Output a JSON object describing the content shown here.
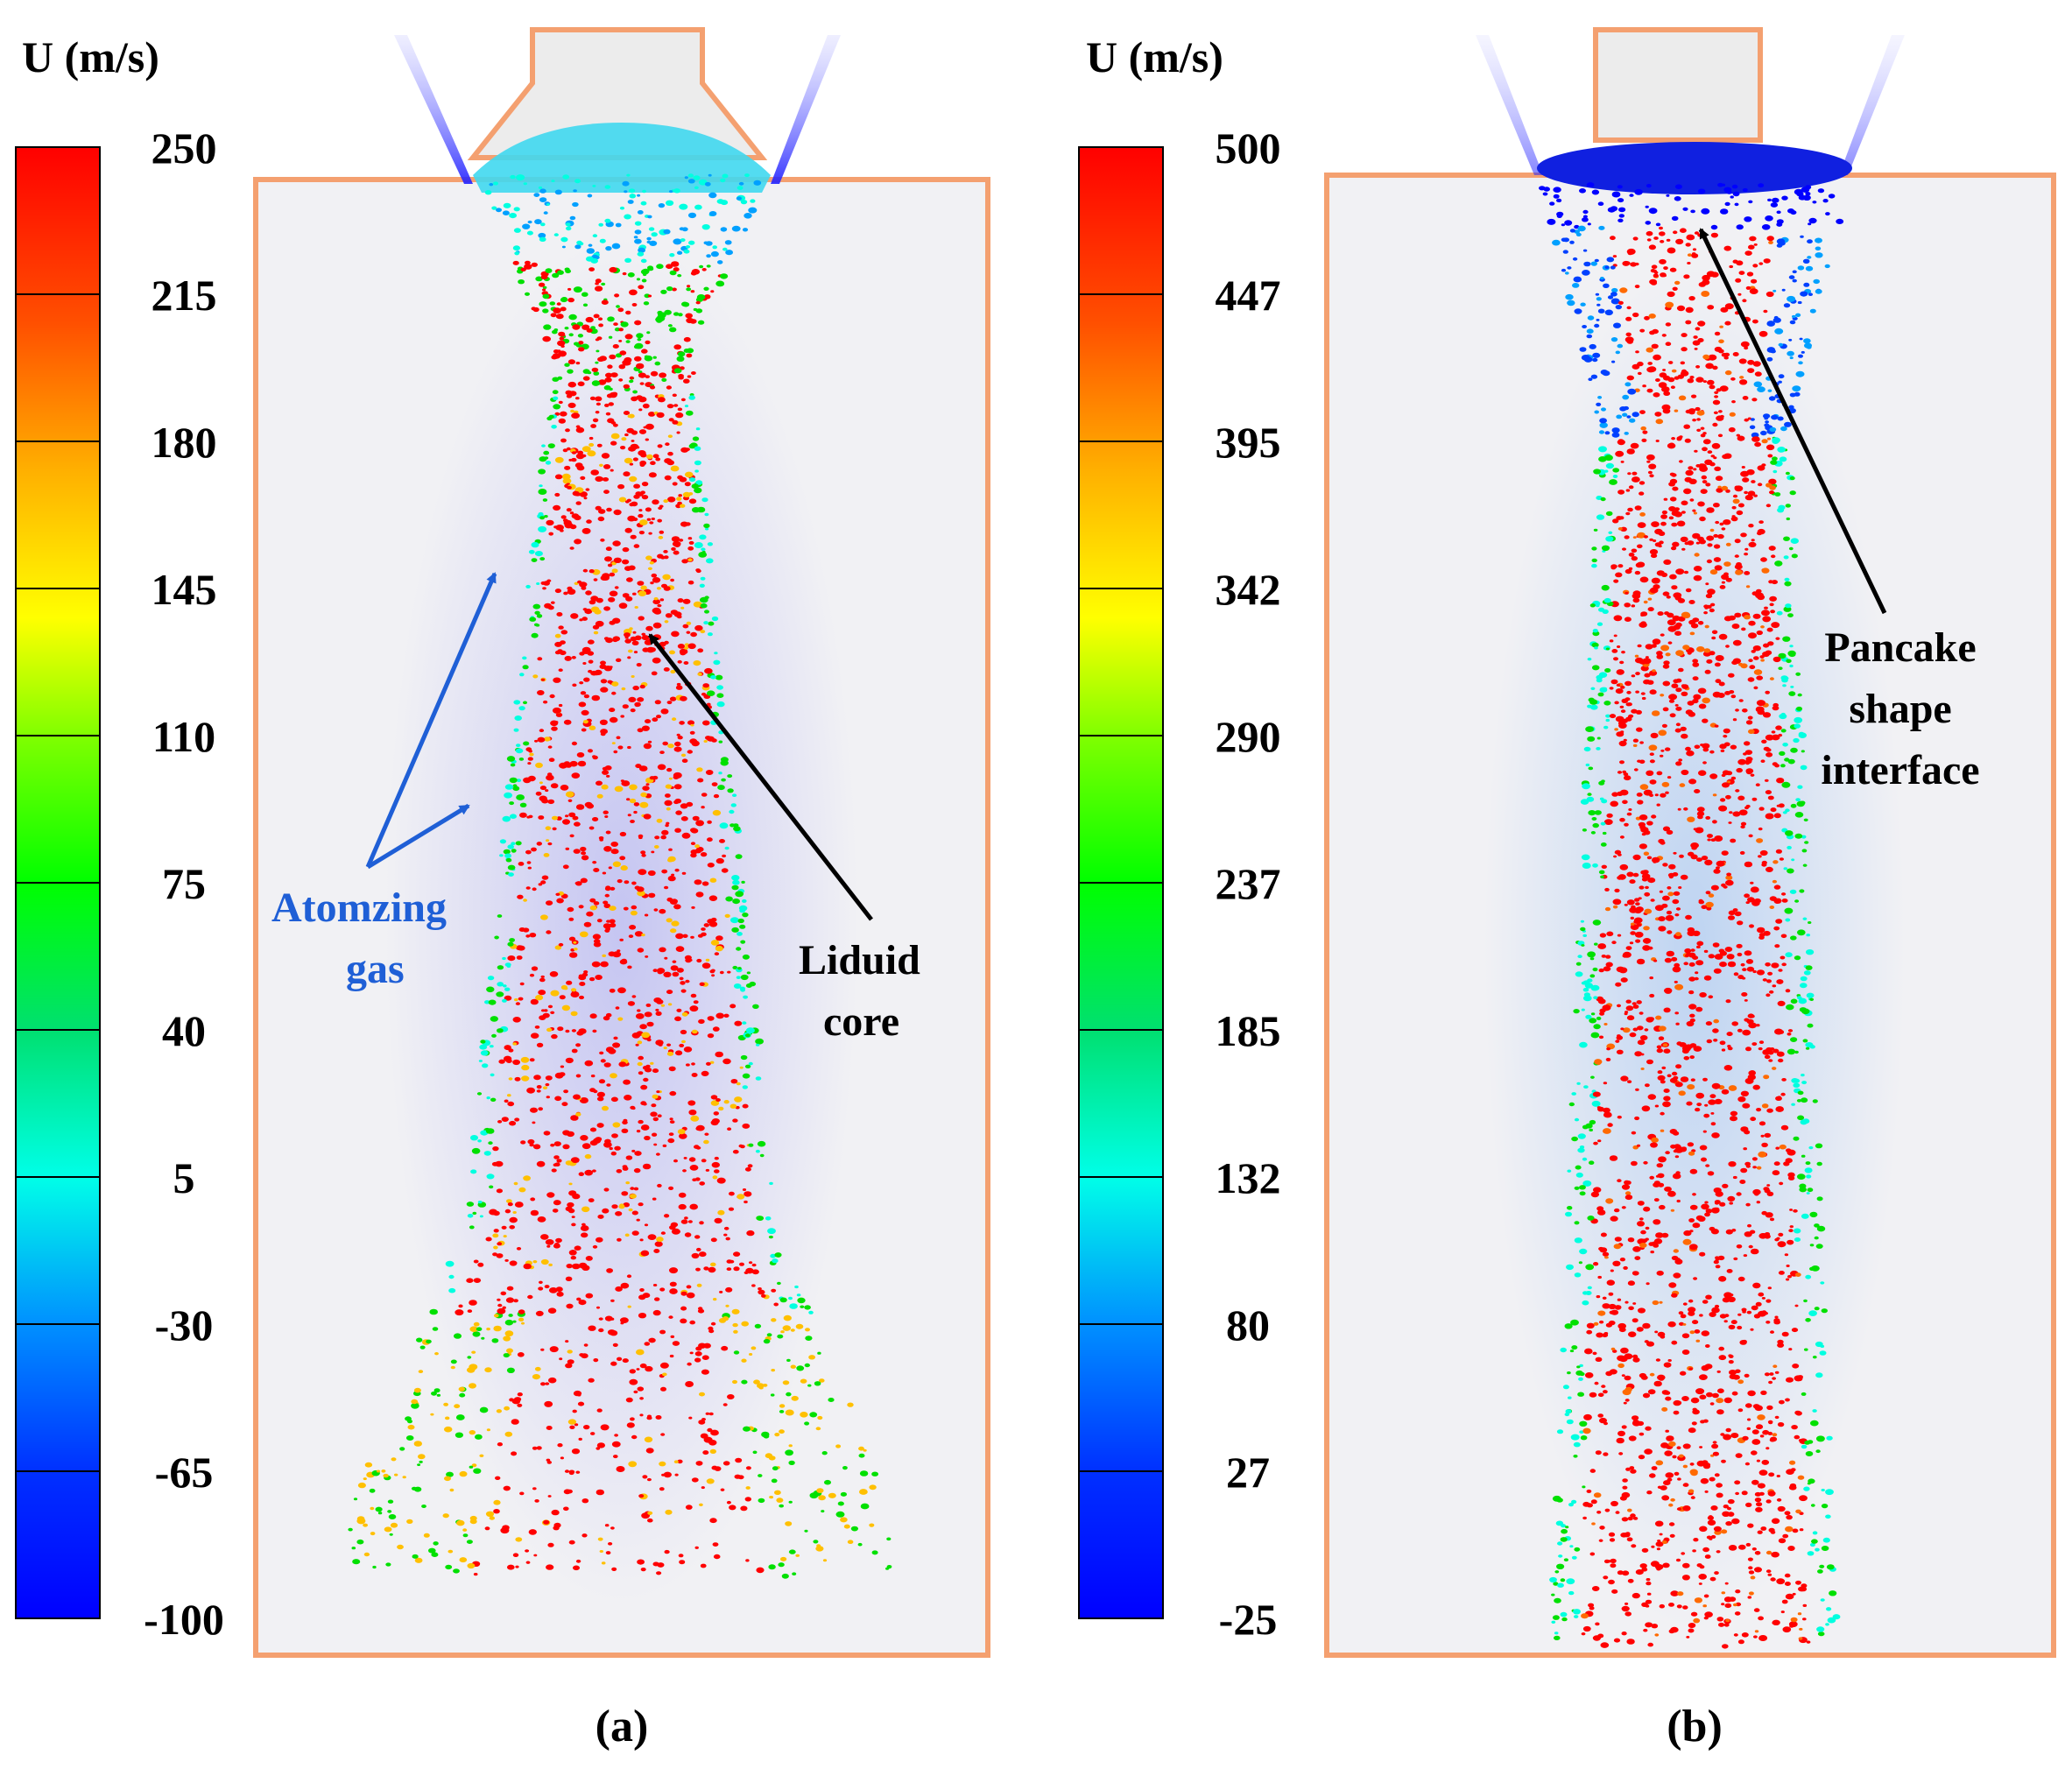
{
  "panels": [
    {
      "id": "a",
      "caption": "(a)",
      "colorbar": {
        "title": "U (m/s)",
        "ticks": [
          "250",
          "215",
          "180",
          "145",
          "110",
          "75",
          "40",
          "5",
          "-30",
          "-65",
          "-100"
        ],
        "min": -100,
        "max": 250
      },
      "annotations": {
        "gas_line1": "Atomzing",
        "gas_line2": "gas",
        "core_line1": "Liduid",
        "core_line2": "core"
      },
      "colors": {
        "gas_arrow": "#1f5fd6",
        "core_arrow": "#000000"
      }
    },
    {
      "id": "b",
      "caption": "(b)",
      "colorbar": {
        "title": "U (m/s)",
        "ticks": [
          "500",
          "447",
          "395",
          "342",
          "290",
          "237",
          "185",
          "132",
          "80",
          "27",
          "-25"
        ],
        "min": -25,
        "max": 500
      },
      "annotations": {
        "interface_line1": "Pancake",
        "interface_line2": "shape",
        "interface_line3": "interface"
      },
      "colors": {
        "interface_arrow": "#000000"
      }
    }
  ],
  "colors": {
    "chamber_outline": "#f4a070",
    "chamber_fill": "#f1f1f4",
    "colormap": [
      "#ff0000",
      "#ff6a00",
      "#ffc000",
      "#ffff00",
      "#00e000",
      "#00d060",
      "#00ffe0",
      "#00a0ff",
      "#0040ff",
      "#0000ff"
    ]
  }
}
